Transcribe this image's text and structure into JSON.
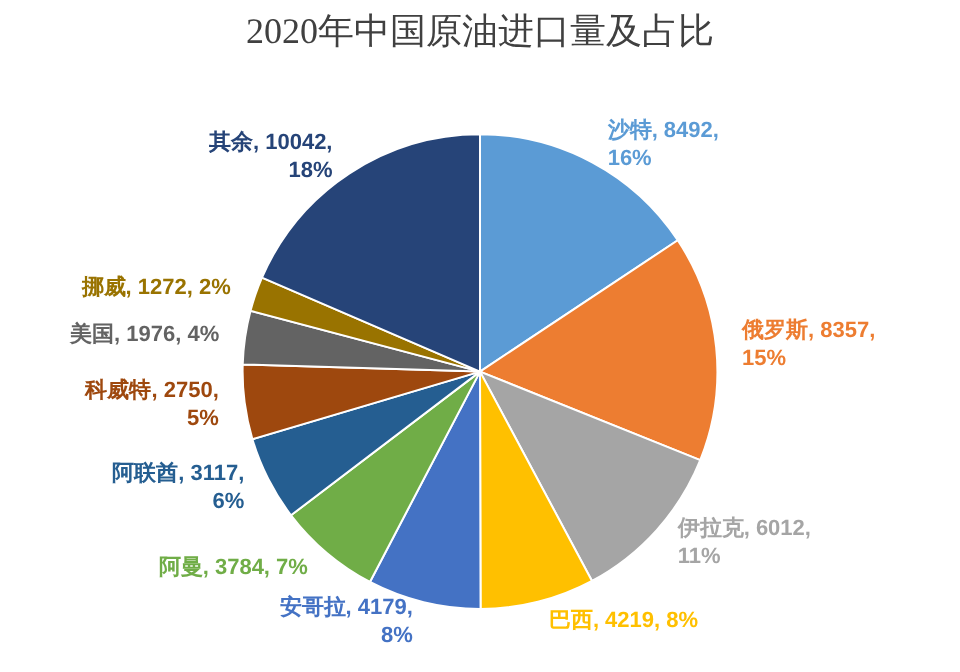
{
  "chart_data": {
    "type": "pie",
    "title": "2020年中国原油进口量及占比",
    "categories": [
      "沙特",
      "俄罗斯",
      "伊拉克",
      "巴西",
      "安哥拉",
      "阿曼",
      "阿联酋",
      "科威特",
      "美国",
      "挪威",
      "其余"
    ],
    "values": [
      8492,
      8357,
      6012,
      4219,
      4179,
      3784,
      3117,
      2750,
      1976,
      1272,
      10042
    ],
    "colors": [
      "#5b9bd5",
      "#ed7d31",
      "#a5a5a5",
      "#ffc000",
      "#4472c4",
      "#70ad47",
      "#255e91",
      "#9e480e",
      "#636363",
      "#997300",
      "#264478"
    ],
    "value_labels": [
      "8492,\n16%",
      "8357,\n15%",
      "6012,\n11%",
      "4219, 8%",
      "4179,\n8%",
      "3784, 7%",
      "3117,\n6%",
      "2750,\n5%",
      "1976, 4%",
      "1272, 2%",
      "10042,\n18%"
    ]
  }
}
